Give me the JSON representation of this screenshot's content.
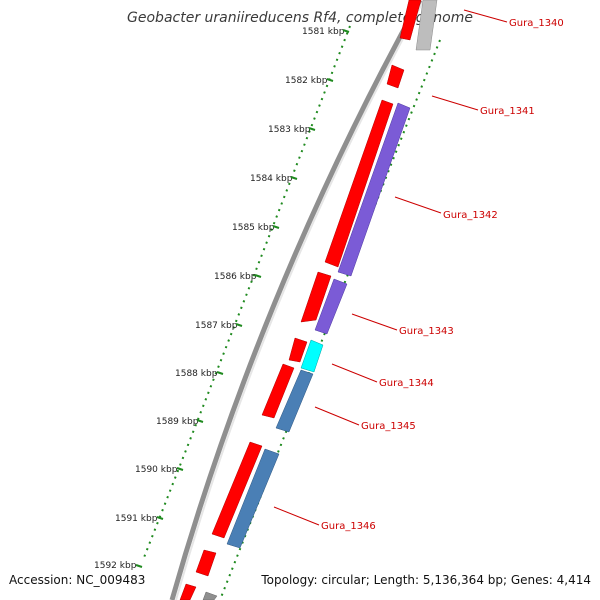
{
  "title": "Geobacter uraniireducens Rf4, complete genome",
  "footer": {
    "accession": "Accession: NC_009483",
    "summary": "Topology: circular; Length: 5,136,364 bp; Genes: 4,414"
  },
  "ticks": [
    "1581 kbp",
    "1582 kbp",
    "1583 kbp",
    "1584 kbp",
    "1585 kbp",
    "1586 kbp",
    "1587 kbp",
    "1588 kbp",
    "1589 kbp",
    "1590 kbp",
    "1591 kbp",
    "1592 kbp"
  ],
  "genes": [
    "Gura_1340",
    "Gura_1341",
    "Gura_1342",
    "Gura_1343",
    "Gura_1344",
    "Gura_1345",
    "Gura_1346"
  ],
  "colors": {
    "cds": "#ff0000",
    "protein_purple": "#7b5bd6",
    "protein_blue": "#4a7fb5",
    "protein_cyan": "#00ffff",
    "gray": "#bdbdbd",
    "tick": "#1f7f1f",
    "label": "#cc0000"
  }
}
